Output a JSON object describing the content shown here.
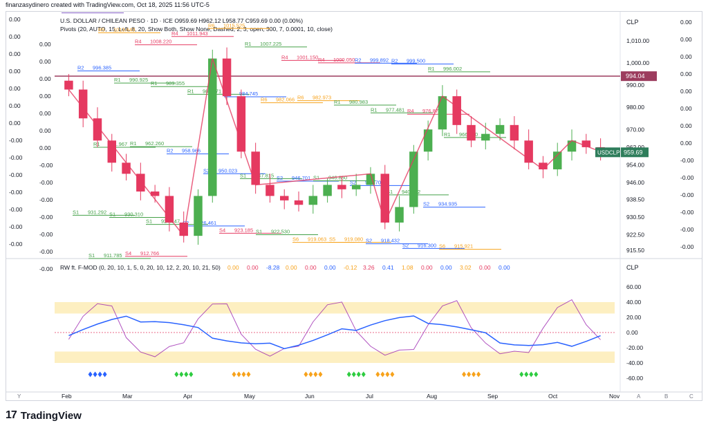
{
  "caption": "finanzasydinero created with TradingView.com, Oct 18, 2025 11:56 UTC-5",
  "header": {
    "symbol_line": "U.S. DOLLAR / CHILEAN PESO · 1D · ICE  O959.69 H962.12 L958.77 C959.69 0.00 (0.00%)",
    "pivots_line": "Pivots (20, AUTO, 15, Left, 8, 20, Show Both, Show None, Dashed, 2, 3, open, 300, 7, 0.0001, 10, close)",
    "currency": "CLP"
  },
  "price_axis": {
    "labels": [
      "1,010.00",
      "1,000.00",
      "990.00",
      "980.00",
      "970.00",
      "962.00",
      "954.00",
      "946.00",
      "938.50",
      "930.50",
      "922.50",
      "915.50"
    ],
    "current_price": "994.04",
    "symbol_tag": "USDCLP",
    "symbol_price": "959.69"
  },
  "left_axis_labels": [
    "0.00",
    "0.00",
    "0.00",
    "0.00",
    "0.00",
    "0.00",
    "0.00",
    "-0.00",
    "-0.00",
    "-0.00",
    "-0.00",
    "-0.00",
    "-0.00",
    "-0.00"
  ],
  "right_extra_labels": [
    "0.00",
    "0.00",
    "0.00",
    "0.00",
    "0.00",
    "0.00",
    "0.00",
    "0.00",
    "-0.00",
    "-0.00",
    "-0.00",
    "-0.00",
    "-0.00",
    "-0.00"
  ],
  "pivot_labels": [
    {
      "tag": "R3",
      "value": "1022.587",
      "color": "#7e57c2"
    },
    {
      "tag": "R5",
      "value": "1013.643",
      "color": "#f7a21b"
    },
    {
      "tag": "R4",
      "value": "1008.220",
      "color": "#e53960"
    },
    {
      "tag": "R4",
      "value": "1011.943",
      "color": "#e53960"
    },
    {
      "tag": "R6",
      "value": "1015.525",
      "color": "#f7a21b"
    },
    {
      "tag": "R1",
      "value": "1007.225",
      "color": "#43a047"
    },
    {
      "tag": "R4",
      "value": "1001.150",
      "color": "#e53960"
    },
    {
      "tag": "R4",
      "value": "1000.050",
      "color": "#e53960"
    },
    {
      "tag": "R2",
      "value": "999.892",
      "color": "#2962ff"
    },
    {
      "tag": "R2",
      "value": "999.500",
      "color": "#2962ff"
    },
    {
      "tag": "R1",
      "value": "996.002",
      "color": "#43a047"
    },
    {
      "tag": "R2",
      "value": "996.385",
      "color": "#2962ff"
    },
    {
      "tag": "R1",
      "value": "990.925",
      "color": "#43a047"
    },
    {
      "tag": "R1",
      "value": "989.355",
      "color": "#43a047"
    },
    {
      "tag": "R1",
      "value": "985.871",
      "color": "#43a047"
    },
    {
      "tag": "R2",
      "value": "984.745",
      "color": "#2962ff"
    },
    {
      "tag": "R6",
      "value": "982.066",
      "color": "#f7a21b"
    },
    {
      "tag": "R6",
      "value": "982.973",
      "color": "#f7a21b"
    },
    {
      "tag": "R1",
      "value": "980.983",
      "color": "#43a047"
    },
    {
      "tag": "R1",
      "value": "977.481",
      "color": "#43a047"
    },
    {
      "tag": "R4",
      "value": "976.874",
      "color": "#e53960"
    },
    {
      "tag": "R1",
      "value": "966.370",
      "color": "#43a047"
    },
    {
      "tag": "R1",
      "value": "961.967",
      "color": "#43a047"
    },
    {
      "tag": "R1",
      "value": "962.260",
      "color": "#43a047"
    },
    {
      "tag": "R2",
      "value": "958.966",
      "color": "#2962ff"
    },
    {
      "tag": "S2",
      "value": "950.023",
      "color": "#2962ff"
    },
    {
      "tag": "S1",
      "value": "947.815",
      "color": "#43a047"
    },
    {
      "tag": "S2",
      "value": "946.701",
      "color": "#2962ff"
    },
    {
      "tag": "S1",
      "value": "946.850",
      "color": "#43a047"
    },
    {
      "tag": "S2",
      "value": "944.703",
      "color": "#2962ff"
    },
    {
      "tag": "S1",
      "value": "940.482",
      "color": "#43a047"
    },
    {
      "tag": "S2",
      "value": "934.935",
      "color": "#2962ff"
    },
    {
      "tag": "S1",
      "value": "931.292",
      "color": "#43a047"
    },
    {
      "tag": "S1",
      "value": "930.310",
      "color": "#43a047"
    },
    {
      "tag": "S1",
      "value": "927.147",
      "color": "#43a047"
    },
    {
      "tag": "S2",
      "value": "926.461",
      "color": "#2962ff"
    },
    {
      "tag": "S4",
      "value": "923.185",
      "color": "#e53960"
    },
    {
      "tag": "S1",
      "value": "922.530",
      "color": "#43a047"
    },
    {
      "tag": "S6",
      "value": "919.063",
      "color": "#f7a21b"
    },
    {
      "tag": "S5",
      "value": "919.080",
      "color": "#f7a21b"
    },
    {
      "tag": "S2",
      "value": "918.432",
      "color": "#2962ff"
    },
    {
      "tag": "S2",
      "value": "916.300",
      "color": "#2962ff"
    },
    {
      "tag": "S6",
      "value": "915.921",
      "color": "#f7a21b"
    },
    {
      "tag": "S1",
      "value": "911.785",
      "color": "#43a047"
    },
    {
      "tag": "S4",
      "value": "912.766",
      "color": "#e53960"
    }
  ],
  "time_axis": [
    "Feb",
    "Mar",
    "Apr",
    "May",
    "Jun",
    "Jul",
    "Aug",
    "Sep",
    "Oct",
    "Nov"
  ],
  "oscillator": {
    "title": "RW ft. F-MOD (0, 20, 10, 1, 5, 0, 20, 10, 12, 2, 20, 10, 21, 50)",
    "values": [
      "0.00",
      "0.00",
      "-8.28",
      "0.00",
      "0.00",
      "0.00",
      "-0.12",
      "3.26",
      "0.41",
      "1.08",
      "0.00",
      "0.00",
      "3.02",
      "0.00",
      "0.00"
    ],
    "currency": "CLP",
    "axis": [
      "60.00",
      "40.00",
      "20.00",
      "0.00",
      "-20.00",
      "-40.00",
      "-60.00"
    ]
  },
  "bottom_buttons": [
    "Y",
    "A",
    "B",
    "C"
  ],
  "brand": "TradingView",
  "colors": {
    "up": "#4caf50",
    "down": "#e53960",
    "ma": "#2962ff",
    "osc": "#9c27b0",
    "band": "#fce8a6",
    "price_tag": "#9c3c5e",
    "symbol_tag": "#2e7d5b"
  },
  "chart_data": {
    "type": "candlestick",
    "x": [
      "Jan 27",
      "Feb 03",
      "Feb 10",
      "Feb 17",
      "Feb 24",
      "Mar 03",
      "Mar 10",
      "Mar 17",
      "Mar 24",
      "Mar 31",
      "Apr 07",
      "Apr 14",
      "Apr 21",
      "Apr 28",
      "May 05",
      "May 12",
      "May 19",
      "May 26",
      "Jun 02",
      "Jun 09",
      "Jun 16",
      "Jun 23",
      "Jun 30",
      "Jul 07",
      "Jul 14",
      "Jul 21",
      "Jul 28",
      "Aug 04",
      "Aug 11",
      "Aug 18",
      "Aug 25",
      "Sep 01",
      "Sep 08",
      "Sep 15",
      "Sep 22",
      "Sep 29",
      "Oct 06",
      "Oct 13"
    ],
    "close": [
      988,
      975,
      965,
      955,
      950,
      942,
      940,
      928,
      922,
      940,
      1002,
      985,
      960,
      945,
      940,
      938,
      936,
      940,
      945,
      943,
      945,
      950,
      928,
      935,
      960,
      970,
      985,
      972,
      965,
      968,
      972,
      965,
      955,
      952,
      960,
      965,
      962,
      960
    ],
    "ylim": [
      915.5,
      1010
    ],
    "ylabel": "CLP"
  }
}
